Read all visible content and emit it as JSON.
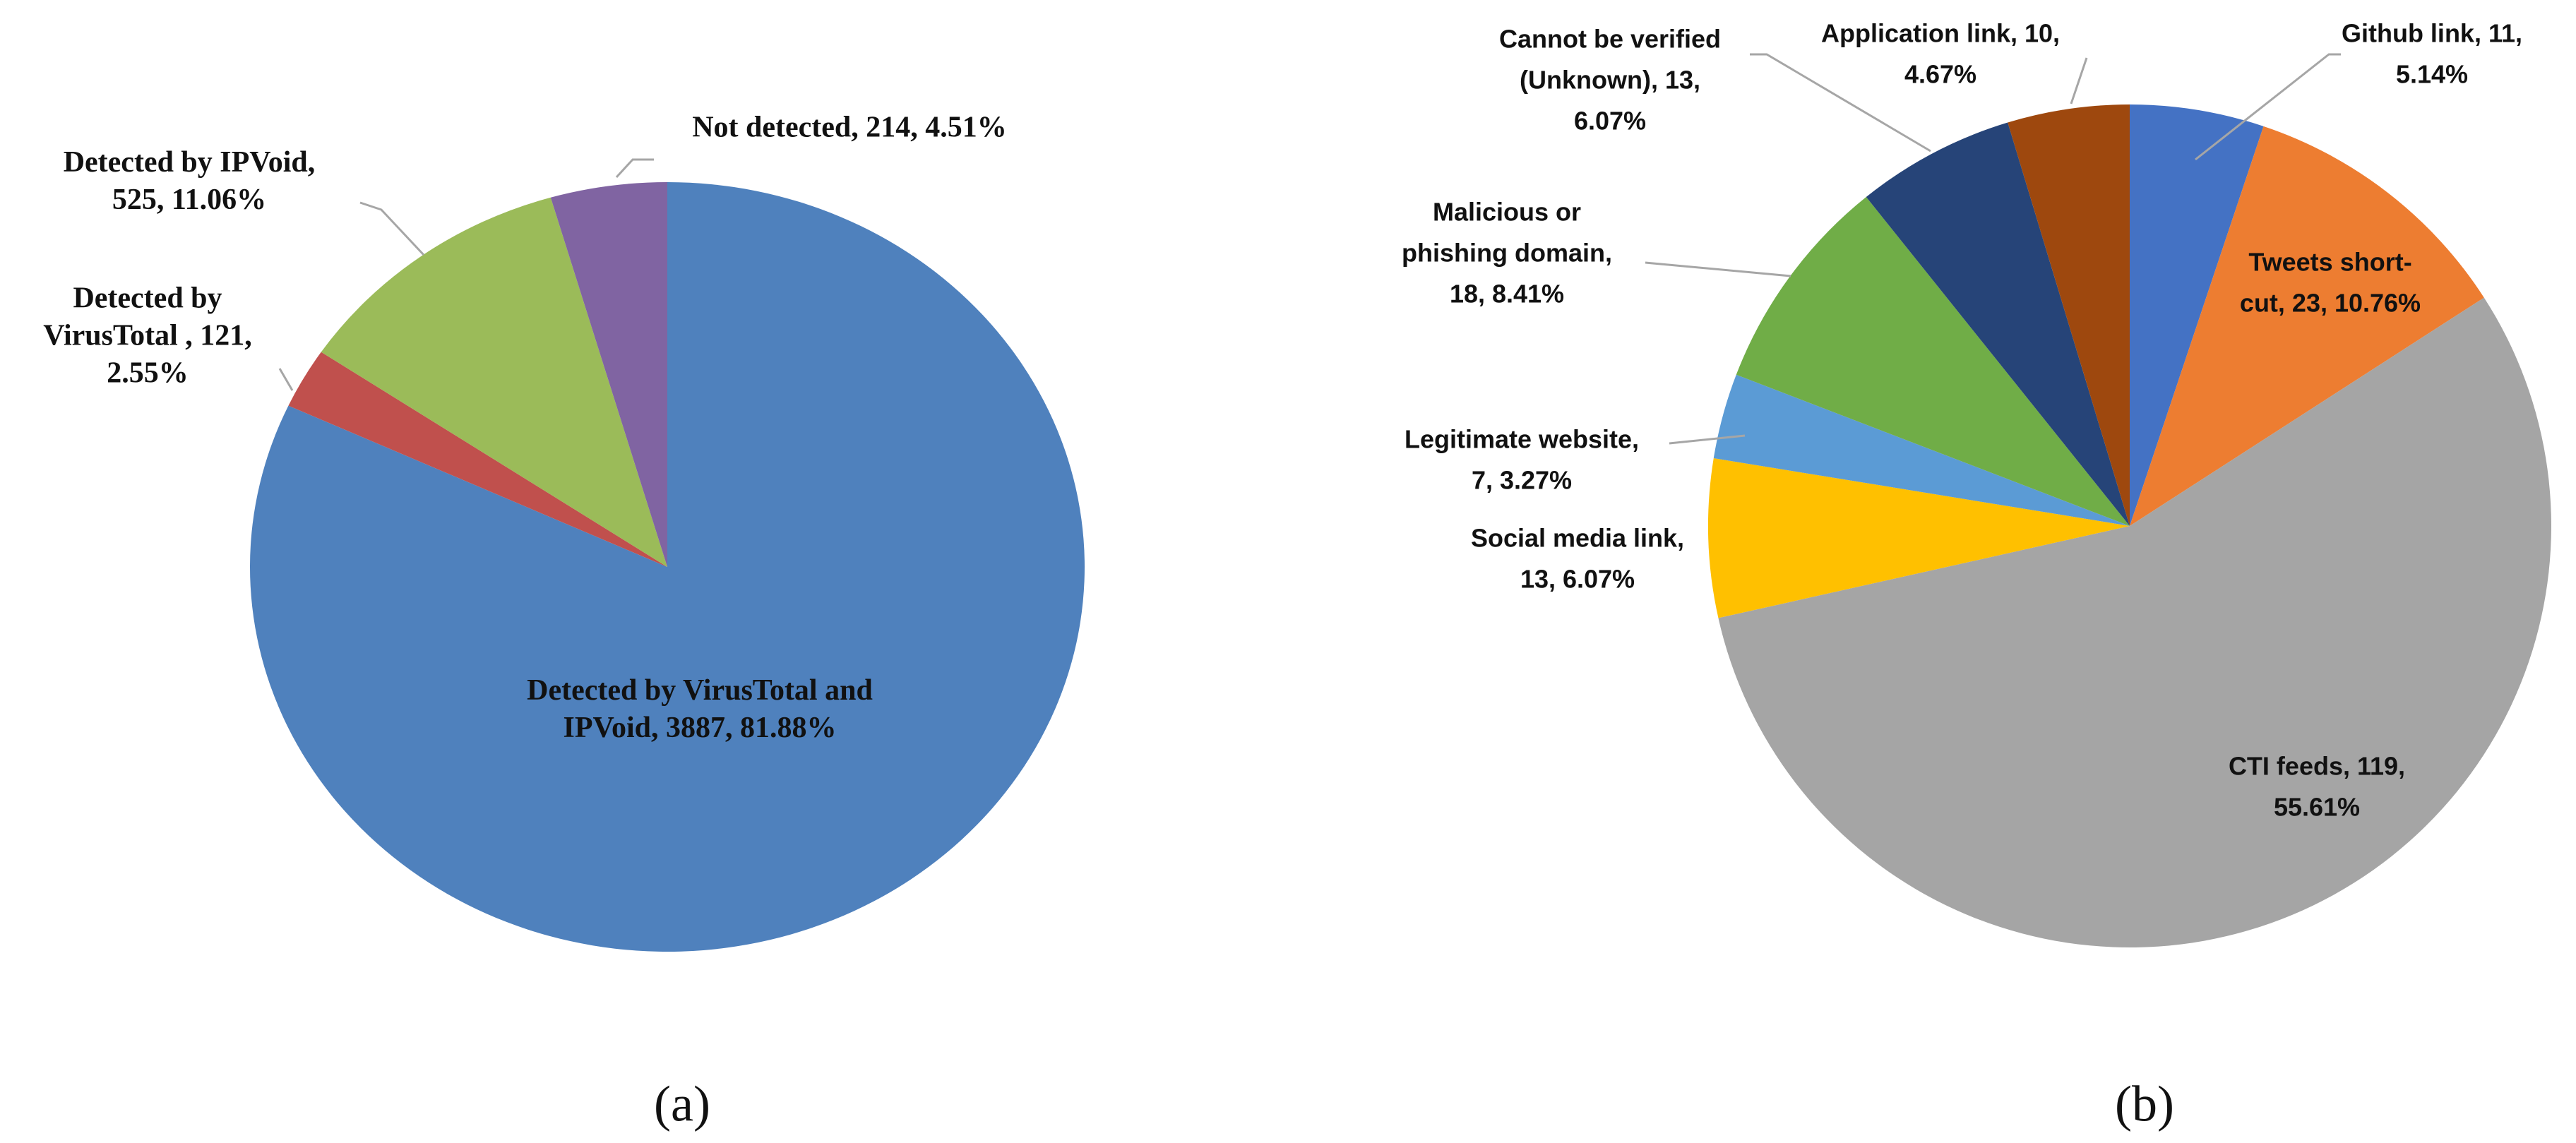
{
  "chart_data": [
    {
      "type": "pie",
      "caption": "(a)",
      "values": [
        3887,
        121,
        525,
        214
      ],
      "value_labels": [
        [
          "Detected by VirusTotal and",
          "IPVoid, 3887, 81.88%"
        ],
        [
          "Detected by",
          "VirusTotal , 121,",
          "2.55%"
        ],
        [
          "Detected by IPVoid,",
          "525, 11.06%"
        ],
        [
          "Not detected, 214, 4.51%"
        ]
      ],
      "colors": [
        "#4f81bd",
        "#c0504d",
        "#9bbb59",
        "#8064a2"
      ]
    },
    {
      "type": "pie",
      "caption": "(b)",
      "values": [
        11,
        23,
        119,
        13,
        7,
        18,
        13,
        10
      ],
      "value_labels": [
        [
          "Github link, 11,",
          "5.14%"
        ],
        [
          "Tweets short-",
          "cut, 23, 10.76%"
        ],
        [
          "CTI feeds, 119,",
          "55.61%"
        ],
        [
          "Social media link,",
          "13, 6.07%"
        ],
        [
          "Legitimate website,",
          "7, 3.27%"
        ],
        [
          "Malicious or",
          "phishing domain,",
          "18, 8.41%"
        ],
        [
          "Cannot be verified",
          "(Unknown), 13,",
          "6.07%"
        ],
        [
          "Application link, 10,",
          "4.67%"
        ]
      ],
      "colors": [
        "#4472c4",
        "#ed7d31",
        "#a5a5a5",
        "#ffc000",
        "#5b9bd5",
        "#70ad47",
        "#264478",
        "#9e480e"
      ]
    }
  ]
}
